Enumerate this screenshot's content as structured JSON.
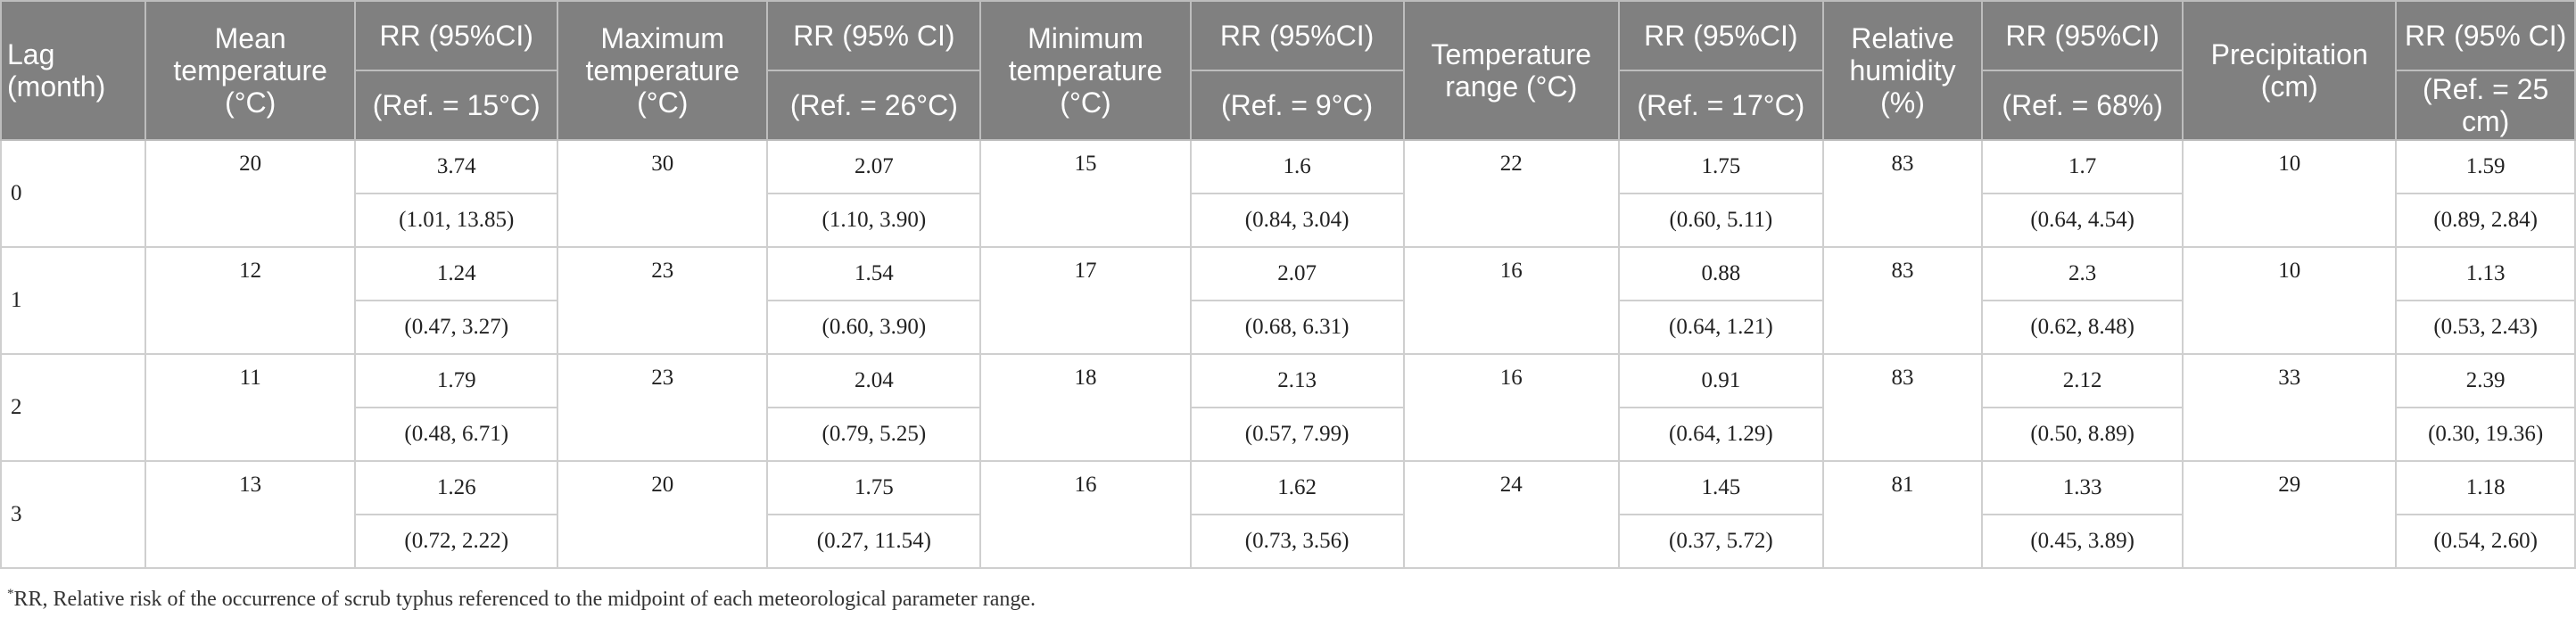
{
  "header": {
    "lag": "Lag (month)",
    "mean_temp": "Mean temperature (°C)",
    "rr_mean": "RR (95%CI)",
    "ref_mean": "(Ref. = 15°C)",
    "max_temp": "Maximum temperature (°C)",
    "rr_max": "RR (95% CI)",
    "ref_max": "(Ref. = 26°C)",
    "min_temp": "Minimum temperature (°C)",
    "rr_min": "RR (95%CI)",
    "ref_min": "(Ref. = 9°C)",
    "temp_range": "Temperature range (°C)",
    "rr_range": "RR (95%CI)",
    "ref_range": "(Ref. = 17°C)",
    "humidity": "Relative humidity (%)",
    "rr_hum": "RR (95%CI)",
    "ref_hum": "(Ref. = 68%)",
    "precip": "Precipitation (cm)",
    "rr_precip": "RR (95% CI)",
    "ref_precip": "(Ref. = 25 cm)"
  },
  "rows": [
    {
      "lag": "0",
      "mean": "20",
      "mean_rr": "3.74",
      "mean_ci": "(1.01, 13.85)",
      "max": "30",
      "max_rr": "2.07",
      "max_ci": "(1.10, 3.90)",
      "min": "15",
      "min_rr": "1.6",
      "min_ci": "(0.84, 3.04)",
      "range": "22",
      "range_rr": "1.75",
      "range_ci": "(0.60, 5.11)",
      "hum": "83",
      "hum_rr": "1.7",
      "hum_ci": "(0.64, 4.54)",
      "precip": "10",
      "precip_rr": "1.59",
      "precip_ci": "(0.89, 2.84)"
    },
    {
      "lag": "1",
      "mean": "12",
      "mean_rr": "1.24",
      "mean_ci": "(0.47, 3.27)",
      "max": "23",
      "max_rr": "1.54",
      "max_ci": "(0.60, 3.90)",
      "min": "17",
      "min_rr": "2.07",
      "min_ci": "(0.68, 6.31)",
      "range": "16",
      "range_rr": "0.88",
      "range_ci": "(0.64, 1.21)",
      "hum": "83",
      "hum_rr": "2.3",
      "hum_ci": "(0.62, 8.48)",
      "precip": "10",
      "precip_rr": "1.13",
      "precip_ci": "(0.53, 2.43)"
    },
    {
      "lag": "2",
      "mean": "11",
      "mean_rr": "1.79",
      "mean_ci": "(0.48, 6.71)",
      "max": "23",
      "max_rr": "2.04",
      "max_ci": "(0.79, 5.25)",
      "min": "18",
      "min_rr": "2.13",
      "min_ci": "(0.57, 7.99)",
      "range": "16",
      "range_rr": "0.91",
      "range_ci": "(0.64, 1.29)",
      "hum": "83",
      "hum_rr": "2.12",
      "hum_ci": "(0.50, 8.89)",
      "precip": "33",
      "precip_rr": "2.39",
      "precip_ci": "(0.30, 19.36)"
    },
    {
      "lag": "3",
      "mean": "13",
      "mean_rr": "1.26",
      "mean_ci": "(0.72, 2.22)",
      "max": "20",
      "max_rr": "1.75",
      "max_ci": "(0.27, 11.54)",
      "min": "16",
      "min_rr": "1.62",
      "min_ci": "(0.73, 3.56)",
      "range": "24",
      "range_rr": "1.45",
      "range_ci": "(0.37, 5.72)",
      "hum": "81",
      "hum_rr": "1.33",
      "hum_ci": "(0.45, 3.89)",
      "precip": "29",
      "precip_rr": "1.18",
      "precip_ci": "(0.54, 2.60)"
    }
  ],
  "footnote": {
    "marker": "*",
    "text": "RR, Relative risk of the occurrence of scrub typhus referenced to the midpoint of each meteorological parameter range."
  }
}
